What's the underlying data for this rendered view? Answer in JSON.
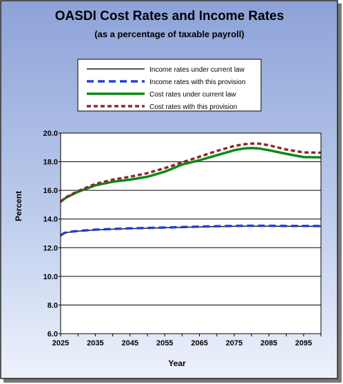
{
  "chart_data": {
    "type": "line",
    "title": "OASDI Cost Rates and Income Rates",
    "subtitle": "(as a percentage of taxable payroll)",
    "xlabel": "Year",
    "ylabel": "Percent",
    "xlim": [
      2025,
      2100
    ],
    "ylim": [
      6.0,
      20.0
    ],
    "y_ticks": [
      "6.0",
      "8.0",
      "10.0",
      "12.0",
      "14.0",
      "16.0",
      "18.0",
      "20.0"
    ],
    "x_ticks": [
      "2025",
      "2035",
      "2045",
      "2055",
      "2065",
      "2075",
      "2085",
      "2095"
    ],
    "grid": "horizontal",
    "legend_position": "top-center",
    "x": [
      2025,
      2026,
      2027,
      2030,
      2035,
      2040,
      2045,
      2050,
      2055,
      2060,
      2065,
      2070,
      2075,
      2078,
      2080,
      2082,
      2085,
      2090,
      2095,
      2100
    ],
    "series": [
      {
        "name": "Income rates under current law",
        "color": "#1a1a1a",
        "style": "solid",
        "values": [
          12.85,
          13.0,
          13.07,
          13.15,
          13.24,
          13.29,
          13.33,
          13.36,
          13.39,
          13.42,
          13.45,
          13.47,
          13.49,
          13.5,
          13.5,
          13.5,
          13.5,
          13.49,
          13.49,
          13.49
        ]
      },
      {
        "name": "Income rates with this provision",
        "color": "#1f3fd6",
        "style": "dashed",
        "values": [
          12.85,
          13.02,
          13.09,
          13.17,
          13.26,
          13.31,
          13.35,
          13.38,
          13.41,
          13.44,
          13.47,
          13.5,
          13.52,
          13.53,
          13.53,
          13.53,
          13.53,
          13.52,
          13.52,
          13.51
        ]
      },
      {
        "name": "Cost rates under current law",
        "color": "#0b8a12",
        "style": "solid",
        "values": [
          15.2,
          15.4,
          15.55,
          15.9,
          16.35,
          16.6,
          16.75,
          16.95,
          17.3,
          17.8,
          18.1,
          18.45,
          18.8,
          18.93,
          18.95,
          18.93,
          18.8,
          18.55,
          18.32,
          18.3
        ]
      },
      {
        "name": "Cost rates with this provision",
        "color": "#8b2a2a",
        "style": "dashed",
        "values": [
          15.2,
          15.42,
          15.58,
          15.95,
          16.45,
          16.75,
          16.95,
          17.2,
          17.55,
          17.95,
          18.35,
          18.75,
          19.1,
          19.22,
          19.27,
          19.27,
          19.15,
          18.85,
          18.65,
          18.63
        ]
      }
    ]
  }
}
